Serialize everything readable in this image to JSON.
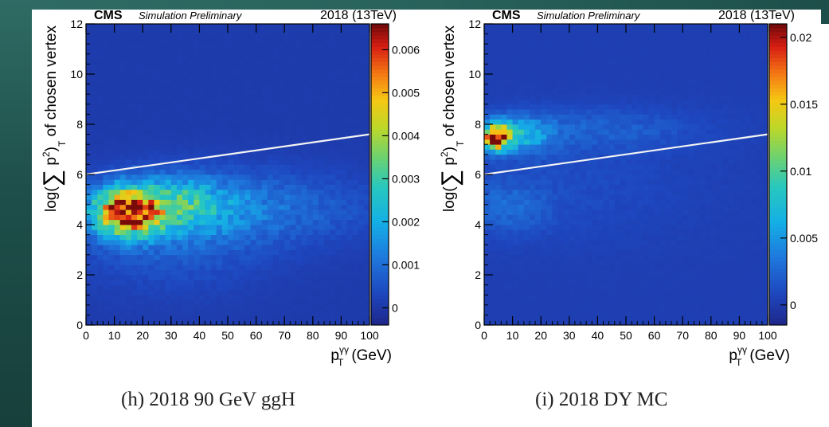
{
  "chart_data": [
    {
      "type": "heatmap",
      "experiment": "CMS",
      "label": "Simulation Preliminary",
      "energy": "2018 (13TeV)",
      "xlabel_main": "p",
      "xlabel_sup": "γγ",
      "xlabel_sub": "T",
      "xlabel_unit": "(GeV)",
      "ylabel_pre": "log(",
      "ylabel_sum": "∑",
      "ylabel_p": " p",
      "ylabel_sup": "2",
      "ylabel_close": ")",
      "ylabel_sub": "T",
      "ylabel_post": " of chosen vertex",
      "xlim": [
        0,
        100
      ],
      "ylim": [
        0,
        12
      ],
      "x_ticks": [
        "0",
        "10",
        "20",
        "30",
        "40",
        "50",
        "60",
        "70",
        "80",
        "90",
        "100"
      ],
      "y_ticks": [
        "0",
        "2",
        "4",
        "6",
        "8",
        "10",
        "12"
      ],
      "z_ticks": [
        "0",
        "0.001",
        "0.002",
        "0.003",
        "0.004",
        "0.005",
        "0.006"
      ],
      "z_tick_values": [
        0,
        0.001,
        0.002,
        0.003,
        0.004,
        0.005,
        0.006
      ],
      "zlim": [
        -0.0004,
        0.0066
      ],
      "cut_line": {
        "x": [
          0,
          100
        ],
        "y": [
          6.0,
          7.6
        ]
      },
      "density_blobs": [
        {
          "x": 14,
          "y": 4.5,
          "sx": 8,
          "sy": 0.65,
          "amp": 0.0052
        },
        {
          "x": 30,
          "y": 4.8,
          "sx": 14,
          "sy": 0.75,
          "amp": 0.0022
        },
        {
          "x": 60,
          "y": 4.7,
          "sx": 28,
          "sy": 1.0,
          "amp": 0.0009
        },
        {
          "x": 30,
          "y": 3.5,
          "sx": 24,
          "sy": 1.4,
          "amp": 0.0006
        }
      ],
      "background_level": 5e-05,
      "caption": "(h) 2018 90 GeV ggH"
    },
    {
      "type": "heatmap",
      "experiment": "CMS",
      "label": "Simulation Preliminary",
      "energy": "2018 (13TeV)",
      "xlabel_main": "p",
      "xlabel_sup": "γγ",
      "xlabel_sub": "T",
      "xlabel_unit": "(GeV)",
      "ylabel_pre": "log(",
      "ylabel_sum": "∑",
      "ylabel_p": " p",
      "ylabel_sup": "2",
      "ylabel_close": ")",
      "ylabel_sub": "T",
      "ylabel_post": " of chosen vertex",
      "xlim": [
        0,
        100
      ],
      "ylim": [
        0,
        12
      ],
      "x_ticks": [
        "0",
        "10",
        "20",
        "30",
        "40",
        "50",
        "60",
        "70",
        "80",
        "90",
        "100"
      ],
      "y_ticks": [
        "0",
        "2",
        "4",
        "6",
        "8",
        "10",
        "12"
      ],
      "z_ticks": [
        "0",
        "0.005",
        "0.01",
        "0.015",
        "0.02"
      ],
      "z_tick_values": [
        0,
        0.005,
        0.01,
        0.015,
        0.02
      ],
      "zlim": [
        -0.0015,
        0.021
      ],
      "cut_line": {
        "x": [
          0,
          100
        ],
        "y": [
          6.0,
          7.6
        ]
      },
      "density_blobs": [
        {
          "x": 4,
          "y": 7.5,
          "sx": 3,
          "sy": 0.35,
          "amp": 0.019
        },
        {
          "x": 12,
          "y": 7.6,
          "sx": 8,
          "sy": 0.5,
          "amp": 0.006
        },
        {
          "x": 40,
          "y": 7.8,
          "sx": 25,
          "sy": 0.6,
          "amp": 0.0018
        },
        {
          "x": 8,
          "y": 4.7,
          "sx": 10,
          "sy": 0.7,
          "amp": 0.0022
        },
        {
          "x": 30,
          "y": 5.5,
          "sx": 30,
          "sy": 1.5,
          "amp": 0.0008
        }
      ],
      "background_level": 0.0002,
      "caption": "(i) 2018 DY MC"
    }
  ]
}
